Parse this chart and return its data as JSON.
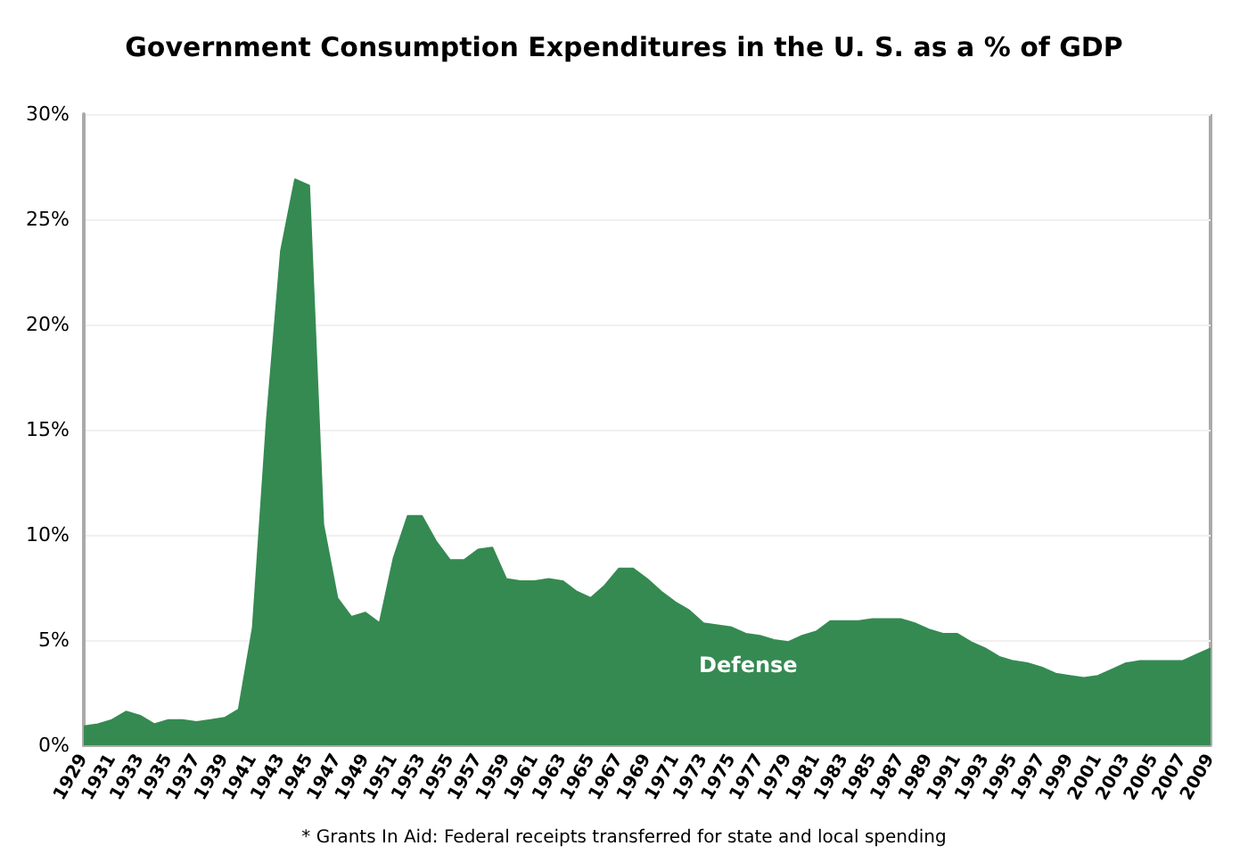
{
  "chart_data": {
    "type": "area",
    "title": "Government Consumption Expenditures in the U. S. as a % of GDP",
    "categories": [
      "1929",
      null,
      "1931",
      null,
      "1933",
      null,
      "1935",
      null,
      "1937",
      null,
      "1939",
      null,
      "1941",
      null,
      "1943",
      null,
      "1945",
      null,
      "1947",
      null,
      "1949",
      null,
      "1951",
      null,
      "1953",
      null,
      "1955",
      null,
      "1957",
      null,
      "1959",
      null,
      "1961",
      null,
      "1963",
      null,
      "1965",
      null,
      "1967",
      null,
      "1969",
      null,
      "1971",
      null,
      "1973",
      null,
      "1975",
      null,
      "1977",
      null,
      "1979",
      null,
      "1981",
      null,
      "1983",
      null,
      "1985",
      null,
      "1987",
      null,
      "1989",
      null,
      "1991",
      null,
      "1993",
      null,
      "1995",
      null,
      "1997",
      null,
      "1999",
      null,
      "2001",
      null,
      "2003",
      null,
      "2005",
      null,
      "2007",
      null,
      "2009"
    ],
    "series": [
      {
        "name": "Defense",
        "color": "#358a52",
        "values": [
          0.9,
          1.0,
          1.2,
          1.6,
          1.4,
          1.0,
          1.2,
          1.2,
          1.1,
          1.2,
          1.3,
          1.7,
          5.6,
          15.5,
          23.5,
          26.9,
          26.6,
          10.5,
          7.0,
          6.1,
          6.3,
          5.8,
          8.9,
          10.9,
          10.9,
          9.7,
          8.8,
          8.8,
          9.3,
          9.4,
          7.9,
          7.8,
          7.8,
          7.9,
          7.8,
          7.3,
          7.0,
          7.6,
          8.4,
          8.4,
          7.9,
          7.3,
          6.8,
          6.4,
          5.8,
          5.7,
          5.6,
          5.3,
          5.2,
          5.0,
          4.9,
          5.2,
          5.4,
          5.9,
          5.9,
          5.9,
          6.0,
          6.0,
          6.0,
          5.8,
          5.5,
          5.3,
          5.3,
          4.9,
          4.6,
          4.2,
          4.0,
          3.9,
          3.7,
          3.4,
          3.3,
          3.2,
          3.3,
          3.6,
          3.9,
          4.0,
          4.0,
          4.0,
          4.0,
          4.3,
          4.6
        ]
      }
    ],
    "ylim": [
      0,
      30
    ],
    "yticks": [
      {
        "value": 0,
        "label": "0%"
      },
      {
        "value": 5,
        "label": "5%"
      },
      {
        "value": 10,
        "label": "10%"
      },
      {
        "value": 15,
        "label": "15%"
      },
      {
        "value": 20,
        "label": "20%"
      },
      {
        "value": 25,
        "label": "25%"
      },
      {
        "value": 30,
        "label": "30%"
      }
    ],
    "grid": "y",
    "legend": false,
    "marker": "none",
    "annotations": [
      "* Grants In Aid: Federal receipts transferred for state and local spending"
    ]
  }
}
